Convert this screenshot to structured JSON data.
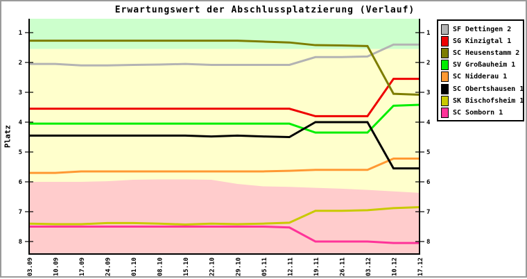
{
  "chart_data": {
    "type": "line",
    "title": "Erwartungswert der Abschlussplatzierung (Verlauf)",
    "ylabel": "Platz",
    "xlabel": "",
    "y_axis_inverted": true,
    "grid": false,
    "legend_position": "right-outside",
    "y_ticks": [
      1,
      2,
      3,
      4,
      5,
      6,
      7,
      8
    ],
    "ylim_top": 0.55,
    "ylim_bottom": 8.42,
    "x_labels": [
      "03.09",
      "10.09",
      "17.09",
      "24.09",
      "01.10",
      "08.10",
      "15.10",
      "22.10",
      "29.10",
      "05.11",
      "12.11",
      "19.11",
      "26.11",
      "03.12",
      "10.12",
      "17.12"
    ],
    "background_bands": {
      "promotion_zone": {
        "color": "#ccffcc",
        "from": 0.55,
        "to": 1.55
      },
      "mid_zone": {
        "color": "#ffffcc",
        "from": 1.55,
        "to": 8.42
      },
      "relegation_zone": {
        "color": "#ffcccc",
        "to": 8.42,
        "top_values": [
          6.0,
          6.0,
          6.0,
          5.98,
          5.93,
          5.92,
          5.92,
          5.93,
          6.07,
          6.15,
          6.17,
          6.2,
          6.23,
          6.27,
          6.32,
          6.37
        ]
      }
    },
    "series": [
      {
        "name": "SF Dettingen 2",
        "color": "#b3b3b3",
        "values": [
          2.05,
          2.05,
          2.1,
          2.1,
          2.08,
          2.07,
          2.05,
          2.08,
          2.08,
          2.08,
          2.08,
          1.82,
          1.82,
          1.8,
          1.4,
          1.4
        ]
      },
      {
        "name": "SG Kinzigtal 1",
        "color": "#ee0000",
        "values": [
          3.55,
          3.55,
          3.55,
          3.55,
          3.55,
          3.55,
          3.55,
          3.55,
          3.55,
          3.55,
          3.55,
          3.8,
          3.8,
          3.8,
          2.55,
          2.55
        ]
      },
      {
        "name": "SC Heusenstamm 2",
        "color": "#7d7d00",
        "values": [
          1.27,
          1.27,
          1.27,
          1.27,
          1.27,
          1.27,
          1.27,
          1.27,
          1.27,
          1.3,
          1.33,
          1.42,
          1.43,
          1.45,
          3.05,
          3.08
        ]
      },
      {
        "name": "SV Großauheim 1",
        "color": "#00ee00",
        "values": [
          4.05,
          4.05,
          4.05,
          4.05,
          4.05,
          4.05,
          4.05,
          4.05,
          4.05,
          4.05,
          4.05,
          4.35,
          4.35,
          4.35,
          3.45,
          3.42
        ]
      },
      {
        "name": "SC Nidderau 1",
        "color": "#ff9933",
        "values": [
          5.7,
          5.7,
          5.65,
          5.65,
          5.65,
          5.65,
          5.65,
          5.65,
          5.65,
          5.65,
          5.63,
          5.6,
          5.6,
          5.6,
          5.22,
          5.22
        ]
      },
      {
        "name": "SC Obertshausen 1",
        "color": "#000000",
        "values": [
          4.45,
          4.45,
          4.45,
          4.45,
          4.45,
          4.45,
          4.45,
          4.48,
          4.45,
          4.48,
          4.5,
          4.0,
          4.0,
          4.0,
          5.55,
          5.55
        ]
      },
      {
        "name": "SK Bischofsheim 1",
        "color": "#c9c900",
        "values": [
          7.4,
          7.42,
          7.42,
          7.38,
          7.38,
          7.4,
          7.43,
          7.4,
          7.42,
          7.4,
          7.37,
          6.97,
          6.97,
          6.95,
          6.88,
          6.85
        ]
      },
      {
        "name": "SC Somborn 1",
        "color": "#ff3399",
        "values": [
          7.5,
          7.5,
          7.5,
          7.5,
          7.5,
          7.5,
          7.5,
          7.5,
          7.5,
          7.5,
          7.53,
          8.0,
          8.0,
          8.0,
          8.05,
          8.05
        ]
      }
    ]
  }
}
